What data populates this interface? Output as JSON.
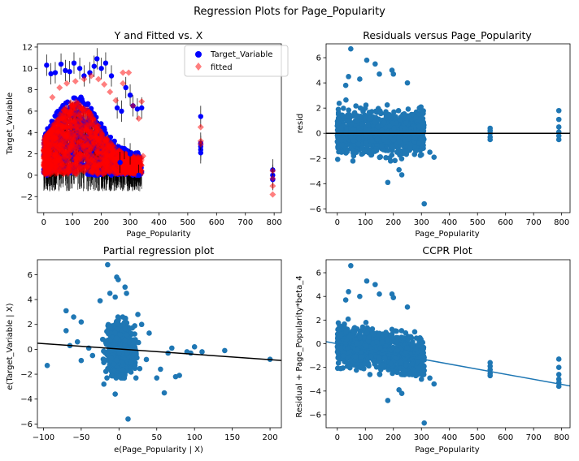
{
  "figure": {
    "suptitle": "Regression Plots for Page_Popularity"
  },
  "colors": {
    "target": "#0000ff",
    "fitted": "#ff0000",
    "ccpr": "#1f77b4",
    "line": "#000000"
  },
  "chart_data": [
    {
      "type": "scatter",
      "title": "Y and Fitted vs. X",
      "xlabel": "Page_Popularity",
      "ylabel": "Target_Variable",
      "xlim": [
        -22,
        825
      ],
      "ylim": [
        -3.5,
        12.3
      ],
      "xticks": [
        0,
        100,
        200,
        300,
        400,
        500,
        600,
        700,
        800
      ],
      "yticks": [
        -2,
        0,
        2,
        4,
        6,
        8,
        10,
        12
      ],
      "legend": {
        "position": "top-right",
        "entries": [
          "Target_Variable",
          "fitted"
        ]
      },
      "series": [
        {
          "name": "Target_Variable",
          "marker": "circle",
          "cloud": {
            "x": [
              0,
              340
            ],
            "y": [
              0,
              8
            ],
            "peak": 110
          },
          "points": [
            [
              10,
              10.3
            ],
            [
              25,
              9.5
            ],
            [
              40,
              9.6
            ],
            [
              60,
              10.4
            ],
            [
              75,
              9.8
            ],
            [
              90,
              9.7
            ],
            [
              105,
              10.5
            ],
            [
              125,
              10.0
            ],
            [
              140,
              9.3
            ],
            [
              160,
              9.6
            ],
            [
              175,
              10.2
            ],
            [
              185,
              10.9
            ],
            [
              200,
              10.0
            ],
            [
              215,
              10.5
            ],
            [
              235,
              9.3
            ],
            [
              255,
              6.3
            ],
            [
              270,
              6.0
            ],
            [
              285,
              8.2
            ],
            [
              300,
              7.5
            ],
            [
              310,
              6.5
            ],
            [
              325,
              6.2
            ],
            [
              340,
              6.3
            ],
            [
              330,
              0.0
            ],
            [
              300,
              2.0
            ],
            [
              280,
              2.5
            ],
            [
              265,
              1.2
            ],
            [
              545,
              5.5
            ],
            [
              545,
              3.0
            ],
            [
              545,
              2.7
            ],
            [
              545,
              2.4
            ],
            [
              545,
              2.1
            ],
            [
              795,
              0.5
            ],
            [
              795,
              0.0
            ],
            [
              795,
              -0.4
            ]
          ]
        },
        {
          "name": "fitted",
          "marker": "diamond",
          "cloud": {
            "x": [
              0,
              340
            ],
            "y": [
              0,
              8
            ],
            "peak": 110
          },
          "points": [
            [
              30,
              7.3
            ],
            [
              55,
              8.2
            ],
            [
              80,
              8.6
            ],
            [
              110,
              8.8
            ],
            [
              140,
              9.0
            ],
            [
              165,
              9.3
            ],
            [
              190,
              9.0
            ],
            [
              210,
              8.5
            ],
            [
              230,
              7.8
            ],
            [
              250,
              7.0
            ],
            [
              275,
              9.6
            ],
            [
              295,
              9.6
            ],
            [
              275,
              8.6
            ],
            [
              310,
              6.5
            ],
            [
              330,
              5.3
            ],
            [
              340,
              6.9
            ],
            [
              345,
              1.8
            ],
            [
              545,
              4.5
            ],
            [
              545,
              3.2
            ],
            [
              545,
              2.9
            ],
            [
              795,
              0.4
            ],
            [
              795,
              -0.3
            ],
            [
              795,
              -1.0
            ],
            [
              795,
              -1.8
            ]
          ]
        }
      ]
    },
    {
      "type": "scatter",
      "title": "Residuals versus Page_Popularity",
      "xlabel": "Page_Popularity",
      "ylabel": "resid",
      "xlim": [
        -40,
        830
      ],
      "ylim": [
        -6.3,
        7.1
      ],
      "xticks": [
        0,
        100,
        200,
        300,
        400,
        500,
        600,
        700,
        800
      ],
      "yticks": [
        -6,
        -4,
        -2,
        0,
        2,
        4,
        6
      ],
      "hline": 0,
      "series": [
        {
          "name": "",
          "cloud": {
            "x": [
              0,
              310
            ],
            "y": [
              -2.2,
              3.0
            ]
          },
          "points": [
            [
              48,
              6.7
            ],
            [
              105,
              5.8
            ],
            [
              135,
              5.5
            ],
            [
              195,
              5.0
            ],
            [
              200,
              4.7
            ],
            [
              40,
              4.5
            ],
            [
              150,
              4.7
            ],
            [
              80,
              4.3
            ],
            [
              30,
              3.8
            ],
            [
              250,
              4.0
            ],
            [
              310,
              -5.6
            ],
            [
              180,
              -3.9
            ],
            [
              230,
              -3.3
            ],
            [
              220,
              -2.9
            ],
            [
              330,
              -1.5
            ],
            [
              300,
              -1.7
            ],
            [
              345,
              -1.9
            ],
            [
              280,
              -1.4
            ],
            [
              545,
              0.4
            ],
            [
              545,
              0.2
            ],
            [
              545,
              0.0
            ],
            [
              545,
              -0.3
            ],
            [
              545,
              -0.5
            ],
            [
              790,
              1.8
            ],
            [
              790,
              1.1
            ],
            [
              790,
              0.5
            ],
            [
              790,
              0.1
            ],
            [
              790,
              -0.2
            ],
            [
              790,
              -0.5
            ]
          ]
        }
      ]
    },
    {
      "type": "scatter",
      "title": "Partial regression plot",
      "xlabel": "e(Page_Popularity | X)",
      "ylabel": "e(Target_Variable | X)",
      "xlim": [
        -108,
        215
      ],
      "ylim": [
        -6.3,
        7.2
      ],
      "xticks": [
        -100,
        -50,
        0,
        50,
        100,
        150,
        200
      ],
      "yticks": [
        -6,
        -4,
        -2,
        0,
        2,
        4,
        6
      ],
      "fit_line": {
        "slope": -0.0043,
        "intercept": 0.03
      },
      "series": [
        {
          "name": "",
          "cloud": {
            "x": [
              -30,
              40
            ],
            "y": [
              -2.3,
              2.6
            ]
          },
          "points": [
            [
              -15,
              6.8
            ],
            [
              -3,
              5.8
            ],
            [
              -1,
              5.6
            ],
            [
              8,
              5.0
            ],
            [
              -12,
              4.5
            ],
            [
              -5,
              4.2
            ],
            [
              10,
              4.5
            ],
            [
              -25,
              3.9
            ],
            [
              -70,
              3.1
            ],
            [
              -60,
              2.6
            ],
            [
              -50,
              2.2
            ],
            [
              -70,
              1.5
            ],
            [
              -55,
              0.6
            ],
            [
              -65,
              0.3
            ],
            [
              -40,
              0.1
            ],
            [
              -35,
              -0.5
            ],
            [
              -95,
              -1.3
            ],
            [
              -50,
              -0.9
            ],
            [
              -20,
              -2.8
            ],
            [
              -5,
              -3.6
            ],
            [
              12,
              -5.6
            ],
            [
              60,
              -3.5
            ],
            [
              50,
              -2.3
            ],
            [
              55,
              -1.6
            ],
            [
              75,
              -2.2
            ],
            [
              80,
              -2.1
            ],
            [
              65,
              -0.3
            ],
            [
              70,
              0.1
            ],
            [
              90,
              -0.2
            ],
            [
              95,
              -0.3
            ],
            [
              110,
              -0.2
            ],
            [
              140,
              -0.1
            ],
            [
              100,
              0.2
            ],
            [
              200,
              -0.8
            ],
            [
              40,
              1.3
            ],
            [
              30,
              2.0
            ],
            [
              25,
              2.8
            ]
          ]
        }
      ]
    },
    {
      "type": "scatter",
      "title": "CCPR Plot",
      "xlabel": "Page_Popularity",
      "ylabel": "Residual + Page_Popularity*beta_4",
      "xlim": [
        -40,
        830
      ],
      "ylim": [
        -7.1,
        7.1
      ],
      "xticks": [
        0,
        100,
        200,
        300,
        400,
        500,
        600,
        700,
        800
      ],
      "yticks": [
        -6,
        -4,
        -2,
        0,
        2,
        4,
        6
      ],
      "fit_line": {
        "slope": -0.0043,
        "intercept": 0.0
      },
      "series": [
        {
          "name": "",
          "cloud": {
            "x": [
              0,
              310
            ],
            "y": [
              -2.6,
              2.8
            ],
            "trend": -0.0043
          },
          "points": [
            [
              48,
              6.6
            ],
            [
              105,
              5.3
            ],
            [
              135,
              5.0
            ],
            [
              195,
              4.2
            ],
            [
              200,
              3.9
            ],
            [
              40,
              4.4
            ],
            [
              150,
              4.2
            ],
            [
              80,
              4.0
            ],
            [
              30,
              3.7
            ],
            [
              250,
              3.1
            ],
            [
              310,
              -6.7
            ],
            [
              180,
              -4.8
            ],
            [
              230,
              -4.2
            ],
            [
              220,
              -3.9
            ],
            [
              330,
              -2.9
            ],
            [
              300,
              -3.0
            ],
            [
              345,
              -3.4
            ],
            [
              280,
              -2.7
            ],
            [
              545,
              -1.6
            ],
            [
              545,
              -1.9
            ],
            [
              545,
              -2.2
            ],
            [
              545,
              -2.5
            ],
            [
              545,
              -2.7
            ],
            [
              790,
              -1.3
            ],
            [
              790,
              -2.0
            ],
            [
              790,
              -2.6
            ],
            [
              790,
              -3.0
            ],
            [
              790,
              -3.3
            ],
            [
              790,
              -3.6
            ]
          ]
        }
      ]
    }
  ]
}
